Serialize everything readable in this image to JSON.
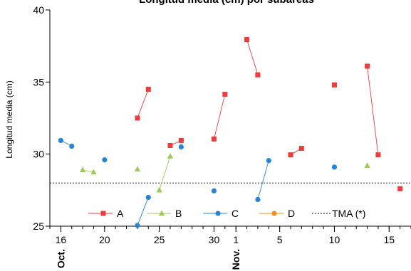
{
  "chart_data": {
    "type": "line",
    "title": "Longitud media (cm) por subáreas",
    "xlabel": "",
    "ylabel": "Longitud media (cm)",
    "ylim": [
      25,
      40
    ],
    "xlim": [
      "2023-10-15",
      "2023-11-17"
    ],
    "x_tick_labels": [
      {
        "date": "2023-10-16",
        "label": "16"
      },
      {
        "date": "2023-10-20",
        "label": "20"
      },
      {
        "date": "2023-10-25",
        "label": "25"
      },
      {
        "date": "2023-10-30",
        "label": "30"
      },
      {
        "date": "2023-11-01",
        "label": "1"
      },
      {
        "date": "2023-11-05",
        "label": "5"
      },
      {
        "date": "2023-11-10",
        "label": "10"
      },
      {
        "date": "2023-11-15",
        "label": "15"
      }
    ],
    "y_ticks": [
      25,
      30,
      35,
      40
    ],
    "month_labels": [
      {
        "date": "2023-10-16",
        "label": "Oct."
      },
      {
        "date": "2023-11-01",
        "label": "Nov."
      }
    ],
    "legend_position": "bottom",
    "series": [
      {
        "name": "A",
        "color": "#f03b3b",
        "marker": "square",
        "segments": [
          [
            [
              "2023-10-23",
              32.5
            ],
            [
              "2023-10-24",
              34.5
            ]
          ],
          [
            [
              "2023-10-26",
              30.6
            ],
            [
              "2023-10-27",
              30.95
            ]
          ],
          [
            [
              "2023-10-30",
              31.05
            ],
            [
              "2023-10-31",
              34.15
            ]
          ],
          [
            [
              "2023-11-02",
              37.95
            ],
            [
              "2023-11-03",
              35.5
            ]
          ],
          [
            [
              "2023-11-06",
              29.95
            ],
            [
              "2023-11-07",
              30.4
            ]
          ],
          [
            [
              "2023-11-10",
              34.8
            ]
          ],
          [
            [
              "2023-11-13",
              36.1
            ],
            [
              "2023-11-14",
              29.95
            ]
          ],
          [
            [
              "2023-11-16",
              27.6
            ]
          ]
        ]
      },
      {
        "name": "B",
        "color": "#9ccb5a",
        "marker": "triangle",
        "segments": [
          [
            [
              "2023-10-18",
              28.9
            ],
            [
              "2023-10-19",
              28.75
            ]
          ],
          [
            [
              "2023-10-23",
              28.95
            ]
          ],
          [
            [
              "2023-10-25",
              27.5
            ],
            [
              "2023-10-26",
              29.85
            ]
          ],
          [
            [
              "2023-11-13",
              29.2
            ]
          ]
        ]
      },
      {
        "name": "C",
        "color": "#2585d8",
        "marker": "circle",
        "segments": [
          [
            [
              "2023-10-16",
              30.95
            ],
            [
              "2023-10-17",
              30.55
            ]
          ],
          [
            [
              "2023-10-20",
              29.6
            ]
          ],
          [
            [
              "2023-10-23",
              25.05
            ],
            [
              "2023-10-24",
              27.0
            ]
          ],
          [
            [
              "2023-10-27",
              30.5
            ]
          ],
          [
            [
              "2023-10-30",
              27.45
            ]
          ],
          [
            [
              "2023-11-03",
              26.85
            ],
            [
              "2023-11-04",
              29.55
            ]
          ],
          [
            [
              "2023-11-10",
              29.1
            ]
          ]
        ]
      },
      {
        "name": "D",
        "color": "#f5901e",
        "marker": "circle",
        "segments": []
      }
    ],
    "reference_lines": [
      {
        "name": "TMA (*)",
        "y": 28.0,
        "color": "#000000",
        "style": "dotted"
      }
    ]
  }
}
